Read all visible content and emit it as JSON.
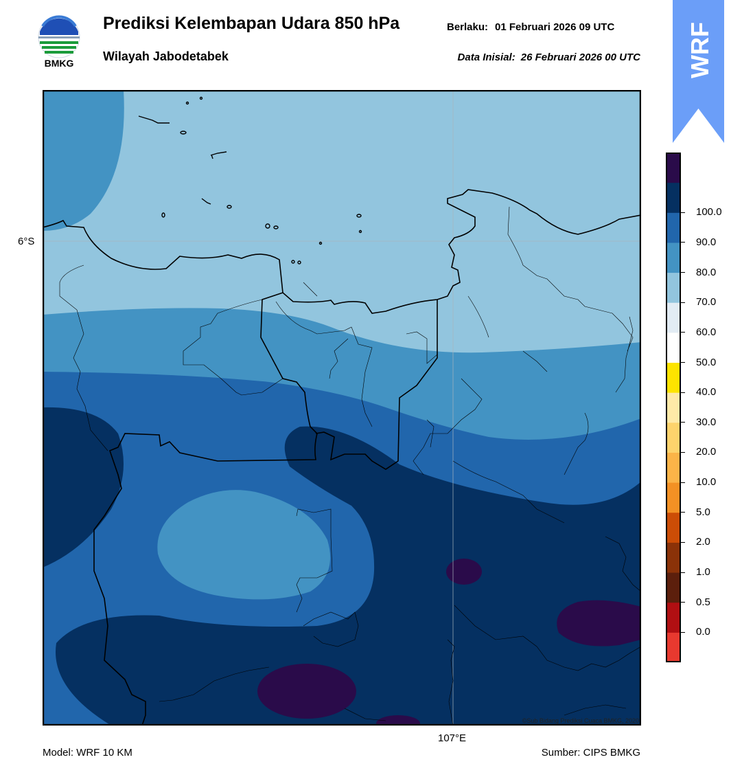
{
  "header": {
    "title": "Prediksi Kelembapan Udara 850 hPa",
    "subtitle": "Wilayah Jabodetabek",
    "valid_label": "Berlaku:",
    "valid_value": "01 Februari 2026 09 UTC",
    "initial_label": "Data Inisial:",
    "initial_value": "26 Februari 2026 00 UTC"
  },
  "logo": {
    "text": "BMKG",
    "icon": "bmkg-logo-icon"
  },
  "badge": {
    "text": "WRF",
    "color": "#6b9ef8"
  },
  "map": {
    "lat_label": "6°S",
    "lon_label": "107°E",
    "copyright": "©Sub Bidang Prediksi Cuaca BMKG, 2020"
  },
  "footer": {
    "model": "Model: WRF 10 KM",
    "source": "Sumber: CIPS BMKG"
  },
  "colorbar": {
    "ticks": [
      "0.0",
      "0.5",
      "1.0",
      "2.0",
      "5.0",
      "10.0",
      "20.0",
      "30.0",
      "40.0",
      "50.0",
      "60.0",
      "70.0",
      "80.0",
      "90.0",
      "100.0"
    ],
    "colors": [
      "#e8392f",
      "#b10f12",
      "#5c1f0c",
      "#8b3208",
      "#cc4d06",
      "#f39124",
      "#fbb448",
      "#fdd36c",
      "#ffeaa8",
      "#fde400",
      "#ffffff",
      "#e2ecf4",
      "#92c5de",
      "#4393c3",
      "#2166ac",
      "#053061",
      "#2a0b4a"
    ]
  },
  "legend_colors": {
    "lt60": "#e2ecf4",
    "60_70": "#92c5de",
    "70_80": "#4393c3",
    "80_90": "#2166ac",
    "90_100": "#053061",
    "gt100": "#2a0b4a"
  }
}
